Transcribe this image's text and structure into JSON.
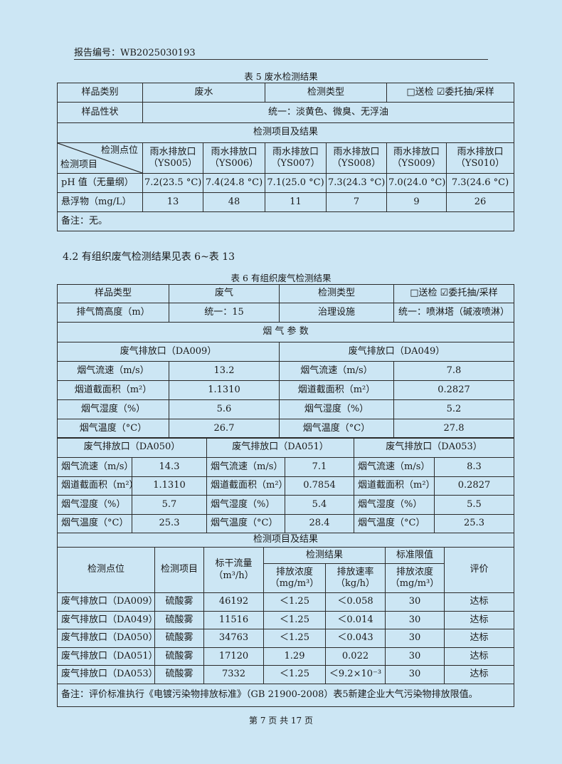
{
  "header": {
    "report_no": "报告编号：WB2025030193"
  },
  "table5": {
    "caption": "表 5  废水检测结果",
    "sample_type_label": "样品类别",
    "sample_type": "废水",
    "test_type_label": "检测类型",
    "test_type": "□送检  ☑委托抽/采样",
    "sample_state_label": "样品性状",
    "sample_state": "统一：淡黄色、微臭、无浮油",
    "section_title": "检测项目及结果",
    "corner_top": "检测点位",
    "corner_bottom": "检测项目",
    "points": [
      "雨水排放口（YS005）",
      "雨水排放口（YS006）",
      "雨水排放口（YS007）",
      "雨水排放口（YS008）",
      "雨水排放口（YS009）",
      "雨水排放口（YS010）"
    ],
    "rows": [
      {
        "item": "pH 值（无量纲）",
        "values": [
          "7.2(23.5 °C)",
          "7.4(24.8 °C)",
          "7.1(25.0 °C)",
          "7.3(24.3 °C)",
          "7.0(24.0 °C)",
          "7.3(24.6 °C)"
        ]
      },
      {
        "item": "悬浮物（mg/L）",
        "values": [
          "13",
          "48",
          "11",
          "7",
          "9",
          "26"
        ]
      }
    ],
    "remark": "备注：无。"
  },
  "section_heading": "4.2  有组织废气检测结果见表 6~表 13",
  "table6": {
    "caption": "表 6  有组织废气检测结果",
    "sample_type_label": "样品类型",
    "sample_type": "废气",
    "test_type_label": "检测类型",
    "test_type": "□送检  ☑委托抽/采样",
    "stack_height_label": "排气筒高度（m）",
    "stack_height": "统一：15",
    "treatment_label": "治理设施",
    "treatment": "统一：喷淋塔（碱液喷淋）",
    "flue_title": "烟 气 参 数",
    "param_labels": [
      "烟气流速（m/s）",
      "烟道截面积（m²）",
      "烟气湿度（%）",
      "烟气温度（°C）"
    ],
    "outlets_a": [
      {
        "name": "废气排放口（DA009）",
        "values": [
          "13.2",
          "1.1310",
          "5.6",
          "26.7"
        ]
      },
      {
        "name": "废气排放口（DA049）",
        "values": [
          "7.8",
          "0.2827",
          "5.2",
          "27.8"
        ]
      }
    ],
    "outlets_b": [
      {
        "name": "废气排放口（DA050）",
        "values": [
          "14.3",
          "1.1310",
          "5.7",
          "25.3"
        ]
      },
      {
        "name": "废气排放口（DA051）",
        "values": [
          "7.1",
          "0.7854",
          "5.4",
          "28.4"
        ]
      },
      {
        "name": "废气排放口（DA053）",
        "values": [
          "8.3",
          "0.2827",
          "5.5",
          "25.3"
        ]
      }
    ],
    "results_title": "检测项目及结果",
    "col_point": "检测点位",
    "col_item": "检测项目",
    "col_flow": "标干流量",
    "col_flow_unit": "（m³/h）",
    "col_result": "检测结果",
    "col_conc": "排放浓度",
    "col_conc_unit": "（mg/m³）",
    "col_rate": "排放速率",
    "col_rate_unit": "（kg/h）",
    "col_limit": "标准限值",
    "col_limit_conc": "排放浓度",
    "col_limit_unit": "（mg/m³）",
    "col_eval": "评价",
    "rows": [
      [
        "废气排放口（DA009）",
        "硫酸雾",
        "46192",
        "＜1.25",
        "＜0.058",
        "30",
        "达标"
      ],
      [
        "废气排放口（DA049）",
        "硫酸雾",
        "11516",
        "＜1.25",
        "＜0.014",
        "30",
        "达标"
      ],
      [
        "废气排放口（DA050）",
        "硫酸雾",
        "34763",
        "＜1.25",
        "＜0.043",
        "30",
        "达标"
      ],
      [
        "废气排放口（DA051）",
        "硫酸雾",
        "17120",
        "1.29",
        "0.022",
        "30",
        "达标"
      ],
      [
        "废气排放口（DA053）",
        "硫酸雾",
        "7332",
        "＜1.25",
        "＜9.2×10⁻³",
        "30",
        "达标"
      ]
    ],
    "remark": "备注：评价标准执行《电镀污染物排放标准》（GB 21900-2008）表5新建企业大气污染物排放限值。"
  },
  "footer": {
    "page": "第 7 页 共 17 页"
  }
}
